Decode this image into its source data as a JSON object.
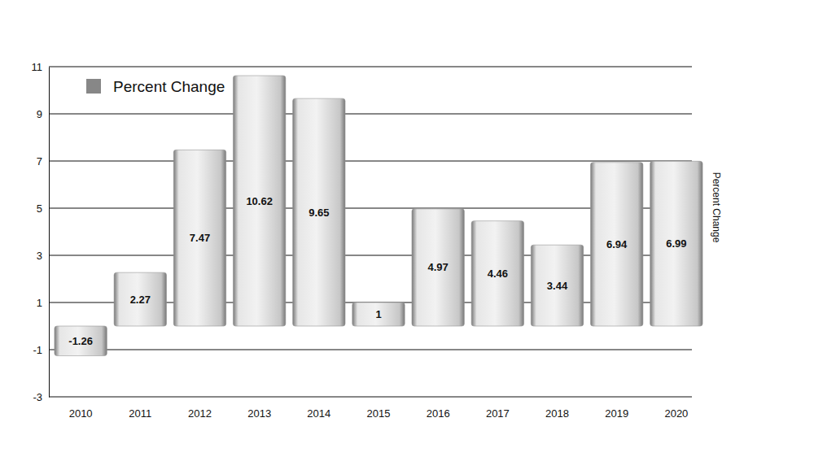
{
  "chart_data": {
    "type": "bar",
    "categories": [
      "2010",
      "2011",
      "2012",
      "2013",
      "2014",
      "2015",
      "2016",
      "2017",
      "2018",
      "2019",
      "2020"
    ],
    "series": [
      {
        "name": "Percent Change",
        "color": "#d6d6d6",
        "values": [
          -1.26,
          2.27,
          7.47,
          10.62,
          9.65,
          1,
          4.97,
          4.46,
          3.44,
          6.94,
          6.99
        ]
      }
    ],
    "y_label": "Percent Change",
    "ylim": [
      -3,
      11
    ],
    "yticks": [
      -3,
      -1,
      1,
      3,
      5,
      7,
      9,
      11
    ],
    "grid": true,
    "data_labels": true,
    "legend": "upper left"
  }
}
